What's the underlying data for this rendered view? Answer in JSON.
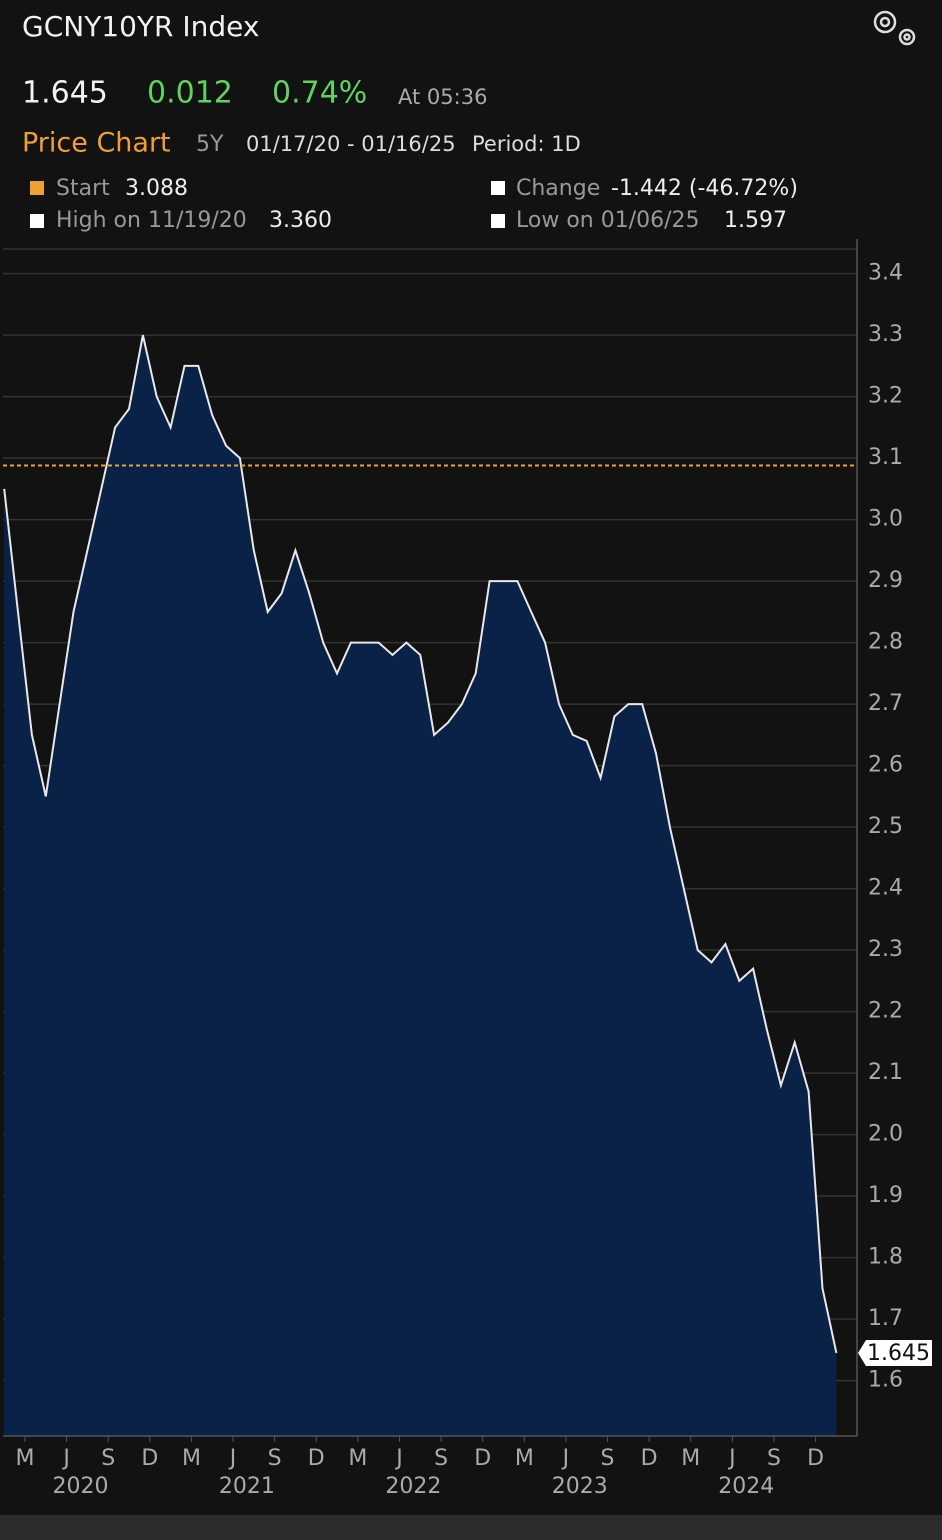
{
  "header": {
    "title": "GCNY10YR Index",
    "last": "1.645",
    "change": "0.012",
    "change_pct": "0.74%",
    "time": "At 05:36",
    "chart_label": "Price Chart",
    "range": "5Y",
    "dates": "01/17/20 - 01/16/25",
    "period": "Period: 1D",
    "stats": [
      {
        "label": "Start",
        "value": "3.088"
      },
      {
        "label": "Change",
        "value": "-1.442 (-46.72%)"
      },
      {
        "label": "High on 11/19/20",
        "value": "3.360"
      },
      {
        "label": "Low on 01/06/25",
        "value": "1.597"
      }
    ]
  },
  "chart_data": {
    "type": "area",
    "x": [
      "2020-01",
      "2020-02",
      "2020-03",
      "2020-04",
      "2020-05",
      "2020-06",
      "2020-07",
      "2020-08",
      "2020-09",
      "2020-10",
      "2020-11",
      "2020-12",
      "2021-01",
      "2021-02",
      "2021-03",
      "2021-04",
      "2021-05",
      "2021-06",
      "2021-07",
      "2021-08",
      "2021-09",
      "2021-10",
      "2021-11",
      "2021-12",
      "2022-01",
      "2022-02",
      "2022-03",
      "2022-04",
      "2022-05",
      "2022-06",
      "2022-07",
      "2022-08",
      "2022-09",
      "2022-10",
      "2022-11",
      "2022-12",
      "2023-01",
      "2023-02",
      "2023-03",
      "2023-04",
      "2023-05",
      "2023-06",
      "2023-07",
      "2023-08",
      "2023-09",
      "2023-10",
      "2023-11",
      "2023-12",
      "2024-01",
      "2024-02",
      "2024-03",
      "2024-04",
      "2024-05",
      "2024-06",
      "2024-07",
      "2024-08",
      "2024-09",
      "2024-10",
      "2024-11",
      "2024-12",
      "2025-01"
    ],
    "series": [
      {
        "name": "GCNY10YR Index",
        "color": "#e8e8e8",
        "fill": "#0b2248",
        "values": [
          3.05,
          2.85,
          2.65,
          2.55,
          2.7,
          2.85,
          2.95,
          3.05,
          3.15,
          3.18,
          3.3,
          3.2,
          3.15,
          3.25,
          3.25,
          3.17,
          3.12,
          3.1,
          2.95,
          2.85,
          2.88,
          2.95,
          2.88,
          2.8,
          2.75,
          2.8,
          2.8,
          2.8,
          2.78,
          2.8,
          2.78,
          2.65,
          2.67,
          2.7,
          2.75,
          2.9,
          2.9,
          2.9,
          2.85,
          2.8,
          2.7,
          2.65,
          2.64,
          2.58,
          2.68,
          2.7,
          2.7,
          2.62,
          2.5,
          2.4,
          2.3,
          2.28,
          2.31,
          2.25,
          2.27,
          2.17,
          2.08,
          2.15,
          2.07,
          1.75,
          1.645
        ]
      }
    ],
    "start_value": 3.088,
    "start_color": "#f0a030",
    "last_price": 1.645,
    "ylim": [
      1.51,
      3.44
    ],
    "yticks": [
      1.6,
      1.7,
      1.8,
      1.9,
      {
        "value": 2,
        "label": "2.0"
      },
      2.1,
      2.2,
      2.3,
      2.4,
      2.5,
      2.6,
      2.7,
      2.8,
      2.9,
      {
        "value": 3,
        "label": "3.0"
      },
      3.1,
      3.2,
      3.3,
      3.4
    ],
    "xticks": [
      {
        "value": "2020-03",
        "label": "M"
      },
      {
        "value": "2020-06",
        "label": "J"
      },
      {
        "value": "2020-09",
        "label": "S"
      },
      {
        "value": "2020-12",
        "label": "D"
      },
      {
        "value": "2021-03",
        "label": "M"
      },
      {
        "value": "2021-06",
        "label": "J"
      },
      {
        "value": "2021-09",
        "label": "S"
      },
      {
        "value": "2021-12",
        "label": "D"
      },
      {
        "value": "2022-03",
        "label": "M"
      },
      {
        "value": "2022-06",
        "label": "J"
      },
      {
        "value": "2022-09",
        "label": "S"
      },
      {
        "value": "2022-12",
        "label": "D"
      },
      {
        "value": "2023-03",
        "label": "M"
      },
      {
        "value": "2023-06",
        "label": "J"
      },
      {
        "value": "2023-09",
        "label": "S"
      },
      {
        "value": "2023-12",
        "label": "D"
      },
      {
        "value": "2024-03",
        "label": "M"
      },
      {
        "value": "2024-06",
        "label": "J"
      },
      {
        "value": "2024-09",
        "label": "S"
      },
      {
        "value": "2024-12",
        "label": "D"
      }
    ],
    "year_labels": [
      {
        "value": "2020-07",
        "label": "2020"
      },
      {
        "value": "2021-07",
        "label": "2021"
      },
      {
        "value": "2022-07",
        "label": "2022"
      },
      {
        "value": "2023-07",
        "label": "2023"
      },
      {
        "value": "2024-07",
        "label": "2024"
      }
    ],
    "grid": true
  }
}
